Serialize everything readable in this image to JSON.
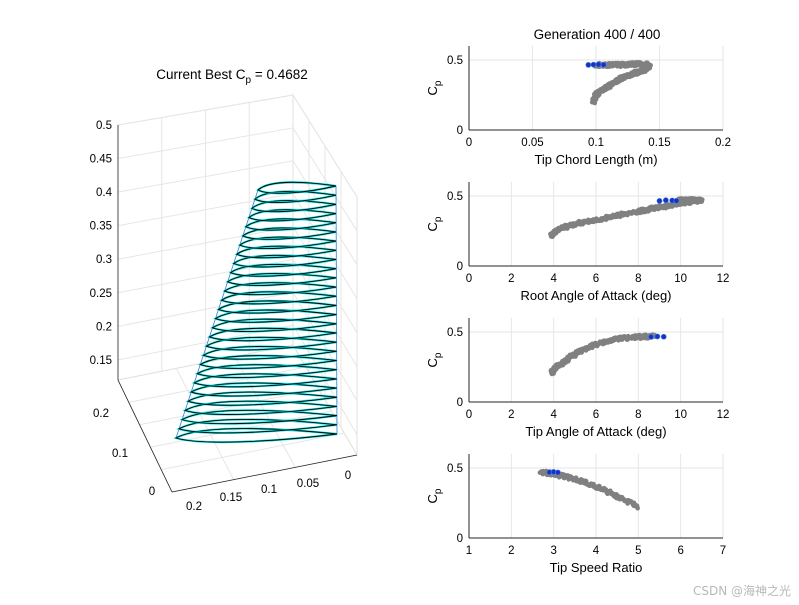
{
  "figure": {
    "left_title_prefix": "Current Best C",
    "left_title_sub": "p",
    "left_title_suffix": " = 0.4682",
    "right_title": "Generation 400 / 400",
    "watermark": "CSDN @海神之光"
  },
  "colors": {
    "population": "#808080",
    "best": "#1f2fbf",
    "best_edge": "#3b8ff0",
    "airfoil_outline": "#000000",
    "airfoil_fill": "#00d8d8",
    "grid": "#e6e6e6",
    "axis": "#262626"
  },
  "chart_data": [
    {
      "type": "surface3d",
      "title": "Current Best Cp = 0.4682",
      "z_ticks": [
        "0.5",
        "0.45",
        "0.4",
        "0.35",
        "0.3",
        "0.25",
        "0.2",
        "0.15"
      ],
      "x_ticks": [
        "0.2",
        "0.15",
        "0.1",
        "0.05",
        "0"
      ],
      "y_ticks": [
        "0.2",
        "0.1",
        "0"
      ],
      "zlim": [
        0.12,
        0.5
      ],
      "sections": 28
    },
    {
      "type": "scatter",
      "xlabel": "Tip Chord Length (m)",
      "ylabel_main": "C",
      "ylabel_sub": "p",
      "xlim": [
        0,
        0.2
      ],
      "ylim": [
        0,
        0.6
      ],
      "x_ticks": [
        "0",
        "0.05",
        "0.1",
        "0.15",
        "0.2"
      ],
      "y_ticks": [
        "0",
        "0.5"
      ],
      "population_path": [
        [
          0.098,
          0.2
        ],
        [
          0.1,
          0.25
        ],
        [
          0.106,
          0.29
        ],
        [
          0.113,
          0.33
        ],
        [
          0.12,
          0.37
        ],
        [
          0.128,
          0.4
        ],
        [
          0.136,
          0.42
        ],
        [
          0.142,
          0.45
        ],
        [
          0.14,
          0.47
        ],
        [
          0.13,
          0.47
        ],
        [
          0.12,
          0.465
        ],
        [
          0.11,
          0.465
        ],
        [
          0.1,
          0.465
        ]
      ],
      "best_points": [
        [
          0.094,
          0.465
        ],
        [
          0.098,
          0.467
        ],
        [
          0.102,
          0.468
        ],
        [
          0.106,
          0.466
        ]
      ]
    },
    {
      "type": "scatter",
      "xlabel": "Root Angle of Attack (deg)",
      "ylabel_main": "C",
      "ylabel_sub": "p",
      "xlim": [
        0,
        12
      ],
      "ylim": [
        0,
        0.6
      ],
      "x_ticks": [
        "0",
        "2",
        "4",
        "6",
        "8",
        "10",
        "12"
      ],
      "y_ticks": [
        "0",
        "0.5"
      ],
      "population_path": [
        [
          3.9,
          0.22
        ],
        [
          4.2,
          0.26
        ],
        [
          5.0,
          0.3
        ],
        [
          6.0,
          0.33
        ],
        [
          7.0,
          0.36
        ],
        [
          8.0,
          0.39
        ],
        [
          9.0,
          0.42
        ],
        [
          10.0,
          0.45
        ],
        [
          11.0,
          0.47
        ],
        [
          10.5,
          0.47
        ],
        [
          9.8,
          0.47
        ]
      ],
      "best_points": [
        [
          9.0,
          0.465
        ],
        [
          9.3,
          0.47
        ],
        [
          9.6,
          0.468
        ],
        [
          9.8,
          0.466
        ]
      ]
    },
    {
      "type": "scatter",
      "xlabel": "Tip Angle of Attack (deg)",
      "ylabel_main": "C",
      "ylabel_sub": "p",
      "xlim": [
        0,
        12
      ],
      "ylim": [
        0,
        0.6
      ],
      "x_ticks": [
        "0",
        "2",
        "4",
        "6",
        "8",
        "10",
        "12"
      ],
      "y_ticks": [
        "0",
        "0.5"
      ],
      "population_path": [
        [
          3.9,
          0.21
        ],
        [
          4.1,
          0.25
        ],
        [
          4.6,
          0.3
        ],
        [
          5.2,
          0.36
        ],
        [
          6.0,
          0.41
        ],
        [
          7.0,
          0.45
        ],
        [
          8.0,
          0.465
        ],
        [
          8.8,
          0.47
        ]
      ],
      "best_points": [
        [
          8.6,
          0.465
        ],
        [
          8.9,
          0.468
        ],
        [
          9.2,
          0.466
        ]
      ]
    },
    {
      "type": "scatter",
      "xlabel": "Tip Speed Ratio",
      "ylabel_main": "C",
      "ylabel_sub": "p",
      "xlim": [
        1,
        7
      ],
      "ylim": [
        0,
        0.6
      ],
      "x_ticks": [
        "1",
        "2",
        "3",
        "4",
        "5",
        "6",
        "7"
      ],
      "y_ticks": [
        "0",
        "0.5"
      ],
      "population_path": [
        [
          2.7,
          0.47
        ],
        [
          3.0,
          0.46
        ],
        [
          3.5,
          0.42
        ],
        [
          4.0,
          0.37
        ],
        [
          4.5,
          0.3
        ],
        [
          5.0,
          0.22
        ]
      ],
      "best_points": [
        [
          2.9,
          0.47
        ],
        [
          3.0,
          0.472
        ],
        [
          3.1,
          0.468
        ]
      ]
    }
  ]
}
